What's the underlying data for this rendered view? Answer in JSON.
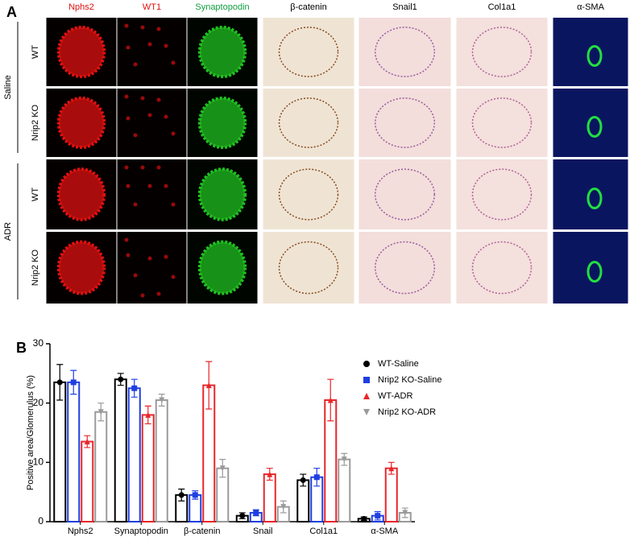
{
  "panel_a": {
    "label": "A",
    "columns": [
      "Nphs2",
      "WT1",
      "Synaptopodin",
      "β-catenin",
      "Snail1",
      "Col1a1",
      "α-SMA"
    ],
    "groups": [
      {
        "name": "Saline",
        "rows": [
          "WT",
          "Nrip2 KO"
        ]
      },
      {
        "name": "ADR",
        "rows": [
          "WT",
          "Nrip2 KO"
        ]
      }
    ]
  },
  "panel_b_label": "B",
  "chart_data": {
    "type": "bar",
    "ylabel": "Positive area/Glomerulus (%)",
    "categories": [
      "Nphs2",
      "Synaptopodin",
      "β-catenin",
      "Snail",
      "Col1a1",
      "α-SMA"
    ],
    "series": [
      {
        "name": "WT-Saline",
        "color": "#000000",
        "marker": "circle",
        "values": [
          23.5,
          24,
          4.5,
          1,
          7,
          0.5
        ],
        "errors": [
          3,
          1,
          1,
          0.5,
          1,
          0.3
        ]
      },
      {
        "name": "Nrip2 KO-Saline",
        "color": "#1f3fe0",
        "marker": "square",
        "values": [
          23.5,
          22.5,
          4.5,
          1.5,
          7.5,
          1
        ],
        "errors": [
          2,
          1.5,
          0.7,
          0.5,
          1.5,
          0.7
        ]
      },
      {
        "name": "WT-ADR",
        "color": "#e8262a",
        "marker": "triangle",
        "values": [
          13.5,
          18,
          23,
          8,
          20.5,
          9
        ],
        "errors": [
          1,
          1.5,
          4,
          1,
          3.5,
          1
        ]
      },
      {
        "name": "Nrip2 KO-ADR",
        "color": "#9a9a9a",
        "marker": "triangle-down",
        "values": [
          18.5,
          20.5,
          9,
          2.5,
          10.5,
          1.5
        ],
        "errors": [
          1.5,
          1,
          1.5,
          1,
          1,
          0.8
        ]
      }
    ],
    "ylim": [
      0,
      30
    ],
    "yticks": [
      0,
      10,
      20,
      30
    ],
    "legend": "top-right"
  }
}
